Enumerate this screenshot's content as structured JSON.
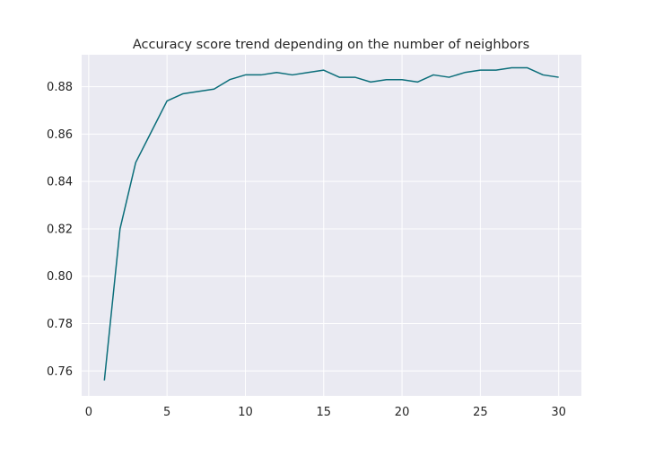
{
  "chart_data": {
    "type": "line",
    "title": "Accuracy score trend depending on the number of neighbors",
    "xlabel": "",
    "ylabel": "",
    "xlim": [
      -0.45,
      31.45
    ],
    "ylim": [
      0.7495,
      0.8935
    ],
    "x_ticks": [
      0,
      5,
      10,
      15,
      20,
      25,
      30
    ],
    "y_ticks": [
      0.76,
      0.78,
      0.8,
      0.82,
      0.84,
      0.86,
      0.88
    ],
    "x_tick_labels": [
      "0",
      "5",
      "10",
      "15",
      "20",
      "25",
      "30"
    ],
    "y_tick_labels": [
      "0.76",
      "0.78",
      "0.80",
      "0.82",
      "0.84",
      "0.86",
      "0.88"
    ],
    "grid": true,
    "legend": "none",
    "series": [
      {
        "color": "#0b6e7a",
        "x": [
          1,
          2,
          3,
          4,
          5,
          6,
          7,
          8,
          9,
          10,
          11,
          12,
          13,
          14,
          15,
          16,
          17,
          18,
          19,
          20,
          21,
          22,
          23,
          24,
          25,
          26,
          27,
          28,
          29,
          30
        ],
        "y": [
          0.756,
          0.82,
          0.848,
          0.861,
          0.874,
          0.877,
          0.878,
          0.879,
          0.883,
          0.885,
          0.885,
          0.886,
          0.885,
          0.886,
          0.887,
          0.884,
          0.884,
          0.882,
          0.883,
          0.883,
          0.882,
          0.885,
          0.884,
          0.886,
          0.887,
          0.887,
          0.888,
          0.888,
          0.885,
          0.884
        ]
      }
    ],
    "colors": {
      "plot_background": "#eaeaf2",
      "grid": "#ffffff",
      "text": "#262626"
    }
  }
}
